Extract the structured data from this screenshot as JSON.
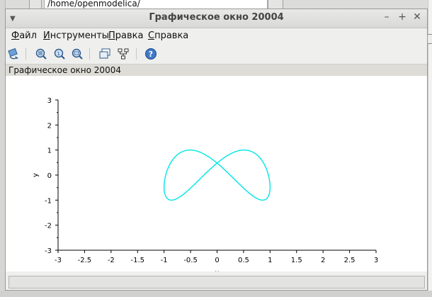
{
  "background": {
    "path_value": "/home/openmodelica/"
  },
  "window": {
    "title": "Графическое окно 20004",
    "controls": {
      "minimize": "–",
      "maximize": "+",
      "close": "✕",
      "menu": "▼"
    }
  },
  "menu": {
    "file": {
      "underline": "Ф",
      "rest": "айл"
    },
    "tools": {
      "underline": "И",
      "rest": "нструменты"
    },
    "edit": {
      "underline": "П",
      "rest": "равка"
    },
    "help": {
      "underline": "С",
      "rest": "правка"
    }
  },
  "toolbar": {
    "icons": [
      "rotate-icon",
      "zoom-area-icon",
      "zoom-reset-icon",
      "zoom-out-icon",
      "figure-window-icon",
      "data-tip-icon",
      "help-icon"
    ]
  },
  "figure": {
    "caption": "Графическое окно 20004"
  },
  "chart_data": {
    "type": "line",
    "equation_note": "",
    "series": [
      {
        "name": "",
        "color": "#00e5e5",
        "x_expr": "sin(t)",
        "y_expr": "sin(2t+0.5)"
      }
    ],
    "xlim": [
      -3,
      3
    ],
    "ylim": [
      -3,
      3
    ],
    "x_ticks": [
      "-3",
      "-2.5",
      "-2",
      "-1.5",
      "-1",
      "-0.5",
      "0",
      "0.5",
      "1",
      "1.5",
      "2",
      "2.5",
      "3"
    ],
    "y_ticks": [
      "-3",
      "-2",
      "-1",
      "0",
      "1",
      "2",
      "3"
    ],
    "ylabel": "y",
    "xlabel": "x",
    "grid": false
  }
}
